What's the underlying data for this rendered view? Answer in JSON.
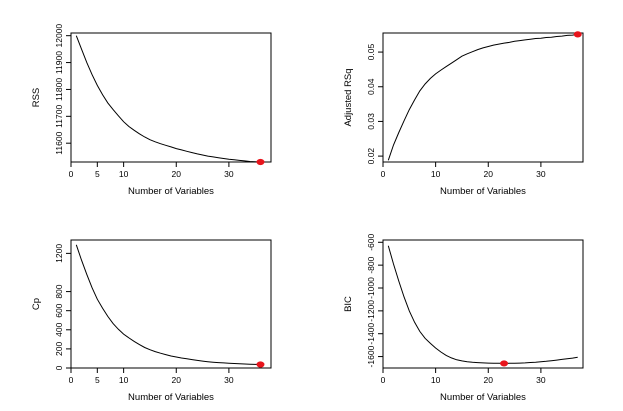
{
  "chart_data": [
    {
      "type": "line",
      "xlabel": "Number of Variables",
      "ylabel": "RSS",
      "xlim": [
        0,
        38
      ],
      "ylim": [
        11530,
        12010
      ],
      "xticks": [
        0,
        5,
        10,
        20,
        30
      ],
      "yticks": [
        11600,
        11700,
        11800,
        11900,
        12000
      ],
      "grid": false,
      "x": [
        1,
        2,
        3,
        4,
        5,
        6,
        7,
        8,
        9,
        10,
        11,
        12,
        13,
        14,
        15,
        16,
        17,
        18,
        19,
        20,
        21,
        22,
        23,
        24,
        25,
        26,
        27,
        28,
        29,
        30,
        31,
        32,
        33,
        34,
        35,
        36
      ],
      "y": [
        12000,
        11950,
        11900,
        11855,
        11815,
        11780,
        11750,
        11725,
        11702,
        11680,
        11662,
        11648,
        11635,
        11623,
        11613,
        11605,
        11598,
        11592,
        11586,
        11580,
        11575,
        11570,
        11565,
        11560,
        11556,
        11552,
        11549,
        11546,
        11543,
        11540,
        11538,
        11536,
        11534,
        11532,
        11531,
        11530
      ],
      "highlight": {
        "x": 36,
        "y": 11530
      },
      "highlight_color": "#e8141c",
      "line_color": "#000000"
    },
    {
      "type": "line",
      "xlabel": "Number of Variables",
      "ylabel": "Adjusted RSq",
      "xlim": [
        0,
        38
      ],
      "ylim": [
        0.0183,
        0.0555
      ],
      "xticks": [
        0,
        10,
        20,
        30
      ],
      "yticks": [
        0.02,
        0.03,
        0.04,
        0.05
      ],
      "grid": false,
      "x": [
        1,
        2,
        3,
        4,
        5,
        6,
        7,
        8,
        9,
        10,
        11,
        12,
        13,
        14,
        15,
        16,
        17,
        18,
        19,
        20,
        21,
        22,
        23,
        24,
        25,
        26,
        27,
        28,
        29,
        30,
        31,
        32,
        33,
        34,
        35,
        36,
        37
      ],
      "y": [
        0.0188,
        0.0232,
        0.0268,
        0.0302,
        0.0334,
        0.0362,
        0.0388,
        0.0408,
        0.0424,
        0.0437,
        0.0448,
        0.0458,
        0.0468,
        0.0478,
        0.0488,
        0.0495,
        0.0501,
        0.0507,
        0.0512,
        0.0516,
        0.052,
        0.0523,
        0.0526,
        0.0528,
        0.0531,
        0.0533,
        0.0535,
        0.0537,
        0.0539,
        0.054,
        0.0542,
        0.0543,
        0.0545,
        0.0546,
        0.0548,
        0.0549,
        0.0551
      ],
      "highlight": {
        "x": 37,
        "y": 0.0551
      },
      "highlight_color": "#e8141c",
      "line_color": "#000000"
    },
    {
      "type": "line",
      "xlabel": "Number of Variables",
      "ylabel": "Cp",
      "xlim": [
        0,
        38
      ],
      "ylim": [
        0,
        1340
      ],
      "xticks": [
        0,
        5,
        10,
        20,
        30
      ],
      "yticks": [
        0,
        200,
        400,
        600,
        800,
        1200
      ],
      "grid": false,
      "x": [
        1,
        2,
        3,
        4,
        5,
        6,
        7,
        8,
        9,
        10,
        11,
        12,
        13,
        14,
        15,
        16,
        17,
        18,
        19,
        20,
        21,
        22,
        23,
        24,
        25,
        26,
        27,
        28,
        29,
        30,
        31,
        32,
        33,
        34,
        35,
        36
      ],
      "y": [
        1290,
        1130,
        980,
        840,
        720,
        625,
        540,
        465,
        405,
        355,
        315,
        278,
        245,
        215,
        192,
        172,
        155,
        140,
        126,
        115,
        105,
        96,
        88,
        80,
        72,
        66,
        61,
        57,
        53,
        50,
        47,
        44,
        42,
        40,
        38,
        37
      ],
      "highlight": {
        "x": 36,
        "y": 37
      },
      "highlight_color": "#e8141c",
      "line_color": "#000000"
    },
    {
      "type": "line",
      "xlabel": "Number of Variables",
      "ylabel": "BIC",
      "xlim": [
        0,
        38
      ],
      "ylim": [
        -1700,
        -580
      ],
      "xticks": [
        0,
        10,
        20,
        30
      ],
      "yticks": [
        -600,
        -800,
        -1000,
        -1200,
        -1400,
        -1600
      ],
      "grid": false,
      "x": [
        1,
        2,
        3,
        4,
        5,
        6,
        7,
        8,
        9,
        10,
        11,
        12,
        13,
        14,
        15,
        16,
        17,
        18,
        19,
        20,
        21,
        22,
        23,
        24,
        25,
        26,
        27,
        28,
        29,
        30,
        31,
        32,
        33,
        34,
        35,
        36,
        37
      ],
      "y": [
        -630,
        -790,
        -940,
        -1080,
        -1200,
        -1300,
        -1380,
        -1440,
        -1485,
        -1525,
        -1560,
        -1590,
        -1612,
        -1628,
        -1638,
        -1645,
        -1650,
        -1653,
        -1655,
        -1657,
        -1658,
        -1659,
        -1660,
        -1659,
        -1658,
        -1657,
        -1655,
        -1652,
        -1649,
        -1645,
        -1641,
        -1636,
        -1631,
        -1625,
        -1619,
        -1613,
        -1606
      ],
      "highlight": {
        "x": 23,
        "y": -1660
      },
      "highlight_color": "#e8141c",
      "line_color": "#000000"
    }
  ]
}
